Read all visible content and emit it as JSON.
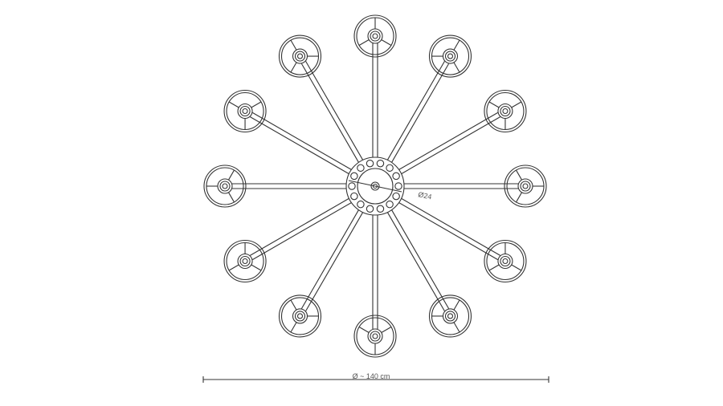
{
  "drawing": {
    "hub_label": "Ø24",
    "diameter_label": "Ø ~ 140 cm",
    "arm_count": 12,
    "hub_hole_count": 14,
    "line_color": "#333333"
  }
}
